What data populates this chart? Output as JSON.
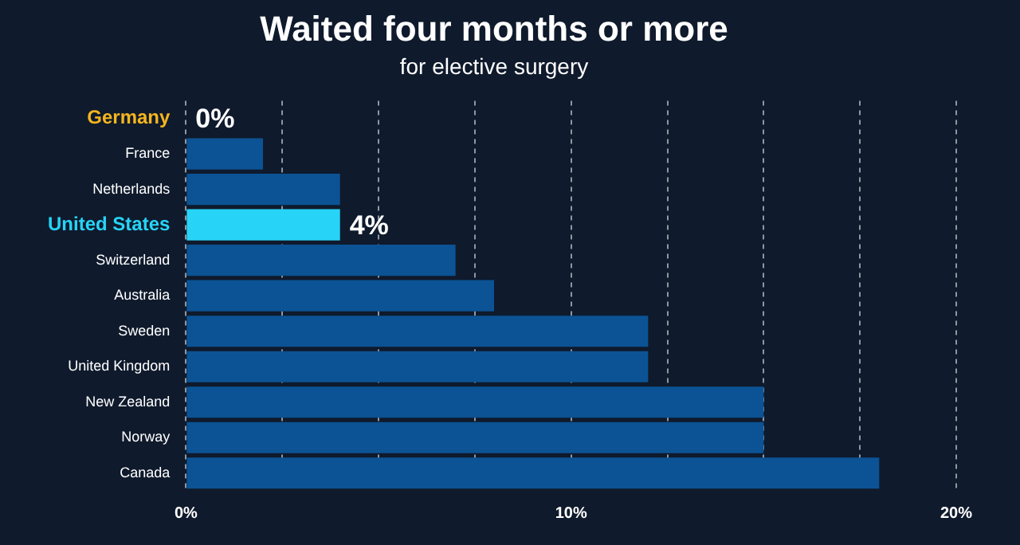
{
  "chart_data": {
    "type": "bar",
    "orientation": "horizontal",
    "title": "Waited four months or more",
    "subtitle": "for elective surgery",
    "categories": [
      "Germany",
      "France",
      "Netherlands",
      "United States",
      "Switzerland",
      "Australia",
      "Sweden",
      "United Kingdom",
      "New Zealand",
      "Norway",
      "Canada"
    ],
    "values": [
      0,
      2,
      4,
      4,
      7,
      8,
      12,
      12,
      15,
      15,
      18
    ],
    "colors": [
      "#f5b51e",
      "#0b5394",
      "#0b5394",
      "#27d4f7",
      "#0b5394",
      "#0b5394",
      "#0b5394",
      "#0b5394",
      "#0b5394",
      "#0b5394",
      "#0b5394"
    ],
    "value_labels": [
      "0%",
      null,
      null,
      "4%",
      null,
      null,
      null,
      null,
      null,
      null,
      null
    ],
    "xlim": [
      0,
      20
    ],
    "xticks": [
      {
        "value": 0,
        "label": "0%"
      },
      {
        "value": 2.5,
        "label": null
      },
      {
        "value": 5,
        "label": null
      },
      {
        "value": 7.5,
        "label": null
      },
      {
        "value": 10,
        "label": "10%"
      },
      {
        "value": 12.5,
        "label": null
      },
      {
        "value": 15,
        "label": null
      },
      {
        "value": 17.5,
        "label": null
      },
      {
        "value": 20,
        "label": "20%"
      }
    ],
    "grid": "x",
    "legend": false
  }
}
